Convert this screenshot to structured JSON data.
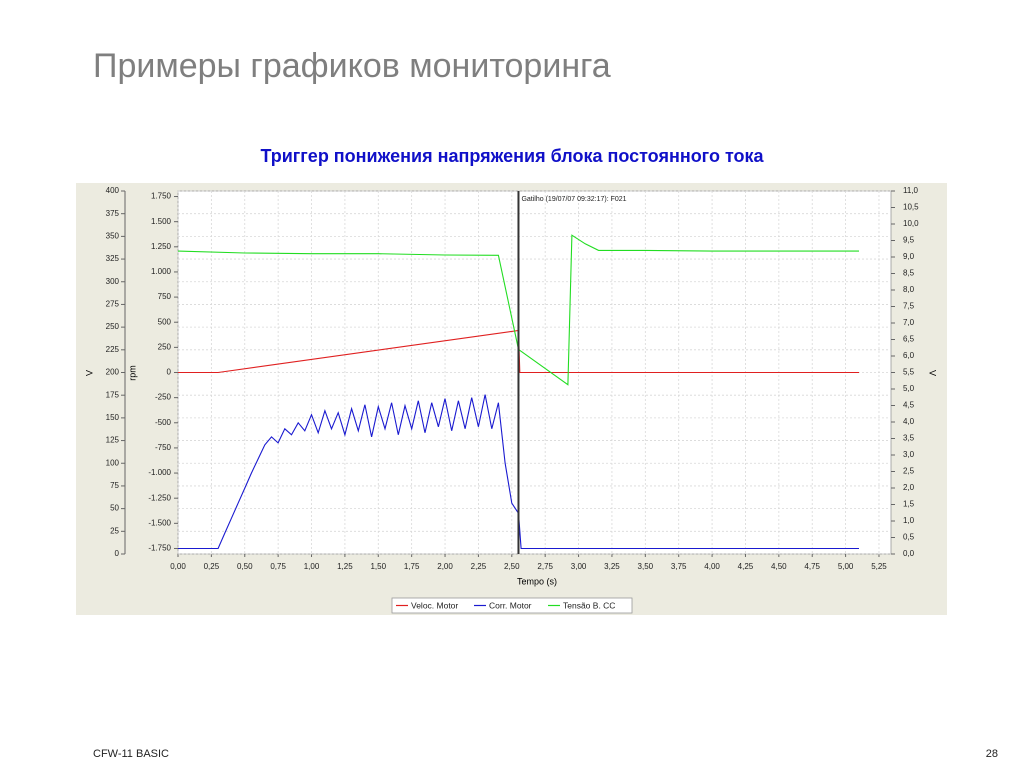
{
  "slide_title": "Примеры графиков мониторинга",
  "footer_left": "CFW-11 BASIC",
  "page_number": "28",
  "chart_data": {
    "type": "line",
    "title": "Триггер понижения напряжения блока постоянного тока",
    "x_label": "Tempo (s)",
    "y_label": "V",
    "y2_label": "rpm",
    "y3_label": "V",
    "xlim": [
      0,
      5.34
    ],
    "xticks": [
      {
        "value": 0,
        "label": "0,00"
      },
      {
        "value": 0.25,
        "label": "0,25"
      },
      {
        "value": 0.5,
        "label": "0,50"
      },
      {
        "value": 0.75,
        "label": "0,75"
      },
      {
        "value": 1,
        "label": "1,00"
      },
      {
        "value": 1.25,
        "label": "1,25"
      },
      {
        "value": 1.5,
        "label": "1,50"
      },
      {
        "value": 1.75,
        "label": "1,75"
      },
      {
        "value": 2,
        "label": "2,00"
      },
      {
        "value": 2.25,
        "label": "2,25"
      },
      {
        "value": 2.5,
        "label": "2,50"
      },
      {
        "value": 2.75,
        "label": "2,75"
      },
      {
        "value": 3,
        "label": "3,00"
      },
      {
        "value": 3.25,
        "label": "3,25"
      },
      {
        "value": 3.5,
        "label": "3,50"
      },
      {
        "value": 3.75,
        "label": "3,75"
      },
      {
        "value": 4,
        "label": "4,00"
      },
      {
        "value": 4.25,
        "label": "4,25"
      },
      {
        "value": 4.5,
        "label": "4,50"
      },
      {
        "value": 4.75,
        "label": "4,75"
      },
      {
        "value": 5,
        "label": "5,00"
      },
      {
        "value": 5.25,
        "label": "5,25"
      }
    ],
    "ylim": [
      0,
      400
    ],
    "yticks": [
      0,
      25,
      50,
      75,
      100,
      125,
      150,
      175,
      200,
      225,
      250,
      275,
      300,
      325,
      350,
      375,
      400
    ],
    "y2lim": [
      -1805,
      1805
    ],
    "y2ticks": [
      {
        "value": -1750,
        "label": "-1.750"
      },
      {
        "value": -1500,
        "label": "-1.500"
      },
      {
        "value": -1250,
        "label": "-1.250"
      },
      {
        "value": -1000,
        "label": "-1.000"
      },
      -750,
      -500,
      -250,
      0,
      250,
      500,
      750,
      {
        "value": 1000,
        "label": "1.000"
      },
      {
        "value": 1250,
        "label": "1.250"
      },
      {
        "value": 1500,
        "label": "1.500"
      },
      {
        "value": 1750,
        "label": "1.750"
      }
    ],
    "y3lim": [
      0,
      11
    ],
    "y3ticks": [
      {
        "value": 0,
        "label": "0,0"
      },
      {
        "value": 0.5,
        "label": "0,5"
      },
      {
        "value": 1,
        "label": "1,0"
      },
      {
        "value": 1.5,
        "label": "1,5"
      },
      {
        "value": 2,
        "label": "2,0"
      },
      {
        "value": 2.5,
        "label": "2,5"
      },
      {
        "value": 3,
        "label": "3,0"
      },
      {
        "value": 3.5,
        "label": "3,5"
      },
      {
        "value": 4,
        "label": "4,0"
      },
      {
        "value": 4.5,
        "label": "4,5"
      },
      {
        "value": 5,
        "label": "5,0"
      },
      {
        "value": 5.5,
        "label": "5,5"
      },
      {
        "value": 6,
        "label": "6,0"
      },
      {
        "value": 6.5,
        "label": "6,5"
      },
      {
        "value": 7,
        "label": "7,0"
      },
      {
        "value": 7.5,
        "label": "7,5"
      },
      {
        "value": 8,
        "label": "8,0"
      },
      {
        "value": 8.5,
        "label": "8,5"
      },
      {
        "value": 9,
        "label": "9,0"
      },
      {
        "value": 9.5,
        "label": "9,5"
      },
      {
        "value": 10,
        "label": "10,0"
      },
      {
        "value": 10.5,
        "label": "10,5"
      },
      {
        "value": 11,
        "label": "11,0"
      }
    ],
    "grid": true,
    "trigger": {
      "x": 2.55,
      "label": "Gatilho (19/07/07 09:32:17): F021"
    },
    "series": [
      {
        "name": "Veloc. Motor",
        "color": "#e02020",
        "axis": "y2",
        "x": [
          0,
          0.3,
          2.55,
          2.56,
          5.1
        ],
        "values": [
          0,
          0,
          418,
          0,
          0
        ]
      },
      {
        "name": "Corr. Motor",
        "color": "#1a1ad0",
        "axis": "y2",
        "x": [
          0,
          0.3,
          0.35,
          0.4,
          0.45,
          0.5,
          0.55,
          0.6,
          0.65,
          0.7,
          0.75,
          0.8,
          0.85,
          0.9,
          0.95,
          1.0,
          1.05,
          1.1,
          1.15,
          1.2,
          1.25,
          1.3,
          1.35,
          1.4,
          1.45,
          1.5,
          1.55,
          1.6,
          1.65,
          1.7,
          1.75,
          1.8,
          1.85,
          1.9,
          1.95,
          2.0,
          2.05,
          2.1,
          2.15,
          2.2,
          2.25,
          2.3,
          2.35,
          2.4,
          2.45,
          2.5,
          2.55,
          2.57,
          5.1
        ],
        "values": [
          -1750,
          -1750,
          -1600,
          -1450,
          -1300,
          -1150,
          -1000,
          -860,
          -720,
          -640,
          -700,
          -560,
          -620,
          -500,
          -580,
          -420,
          -600,
          -380,
          -560,
          -400,
          -620,
          -360,
          -580,
          -320,
          -640,
          -340,
          -560,
          -300,
          -620,
          -330,
          -560,
          -280,
          -600,
          -300,
          -540,
          -260,
          -580,
          -280,
          -560,
          -250,
          -540,
          -220,
          -560,
          -300,
          -900,
          -1300,
          -1400,
          -1750,
          -1750
        ]
      },
      {
        "name": "Tensão B. CC",
        "color": "#22dd22",
        "axis": "y3",
        "x": [
          0,
          0.5,
          1.0,
          1.5,
          2.0,
          2.4,
          2.55,
          2.92,
          2.95,
          3.05,
          3.15,
          3.5,
          4.0,
          4.5,
          5.1
        ],
        "values": [
          9.18,
          9.12,
          9.1,
          9.1,
          9.06,
          9.05,
          6.2,
          5.13,
          9.66,
          9.4,
          9.2,
          9.2,
          9.18,
          9.18,
          9.18
        ]
      }
    ]
  }
}
